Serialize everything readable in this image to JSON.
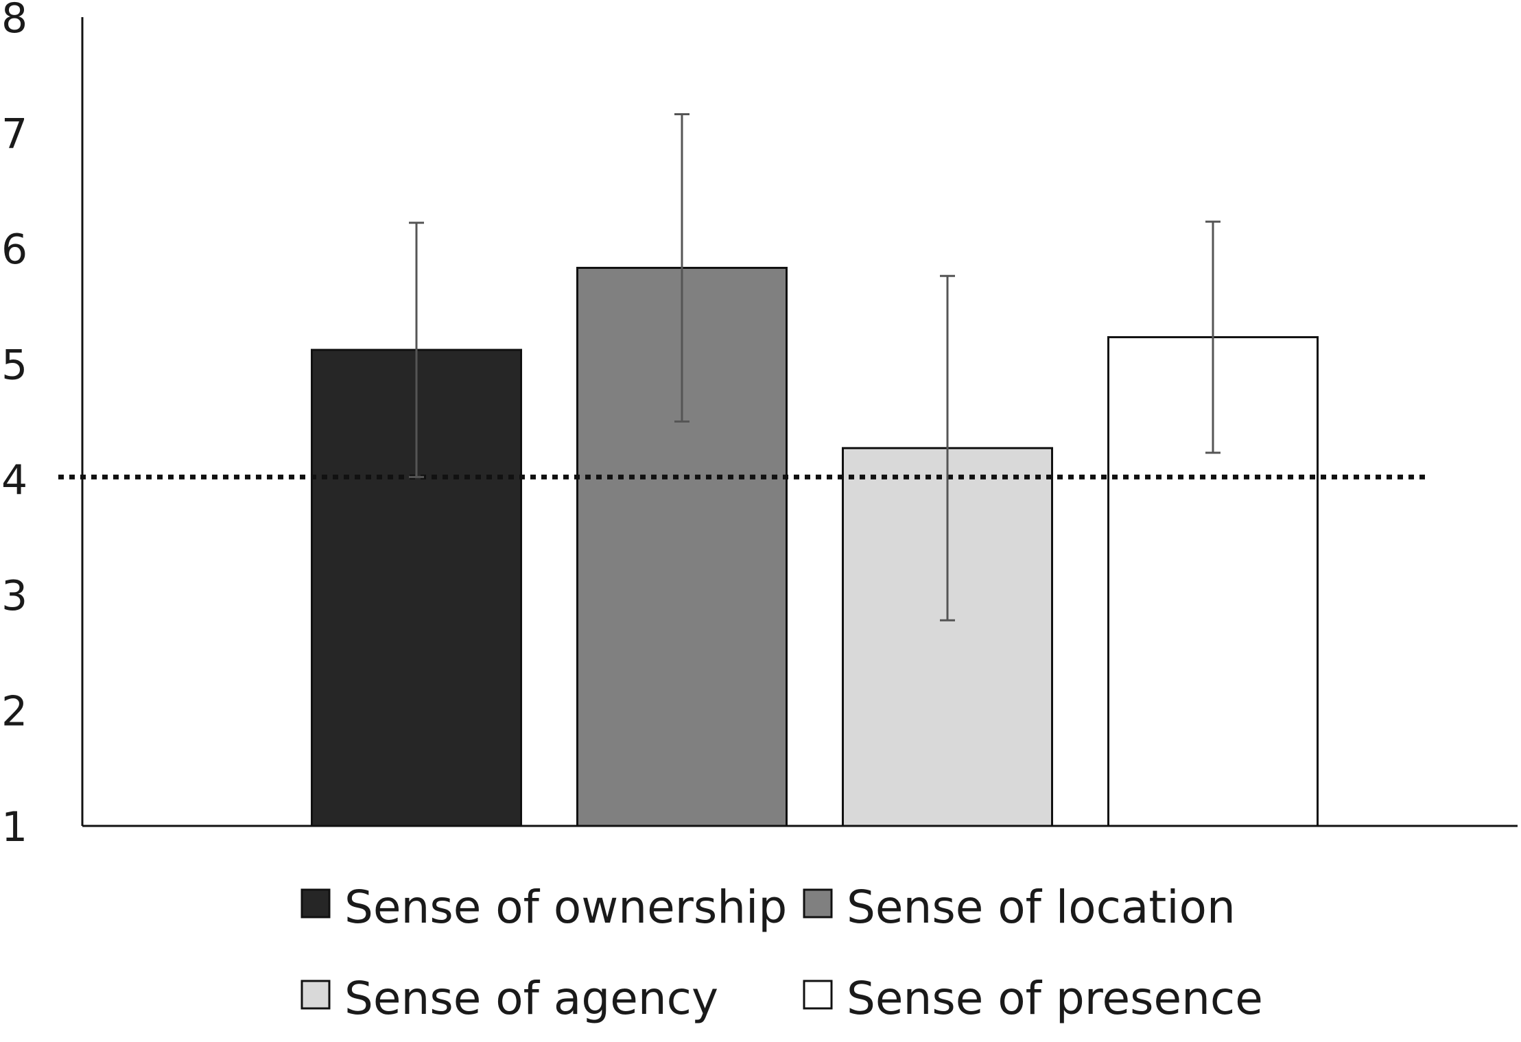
{
  "chart_data": {
    "type": "bar",
    "categories": [
      "Sense of ownership",
      "Sense of location",
      "Sense of agency",
      "Sense of presence"
    ],
    "values": [
      5.12,
      5.83,
      4.27,
      5.23
    ],
    "error_bars": [
      1.1,
      1.33,
      1.49,
      1.0
    ],
    "reference_line": 4.02,
    "ylim": [
      1,
      8
    ],
    "yticks": [
      "1",
      "2",
      "3",
      "4",
      "5",
      "6",
      "7",
      "8"
    ],
    "grid": false,
    "legend_position": "bottom",
    "legend": [
      {
        "label": "Sense of ownership",
        "color": "#262626"
      },
      {
        "label": "Sense of location",
        "color": "#808080"
      },
      {
        "label": "Sense of agency",
        "color": "#d9d9d9"
      },
      {
        "label": "Sense of presence",
        "color": "#ffffff"
      }
    ],
    "bar_colors": [
      "#262626",
      "#808080",
      "#d9d9d9",
      "#ffffff"
    ],
    "outline_color": "#111111",
    "error_color": "#555555"
  }
}
